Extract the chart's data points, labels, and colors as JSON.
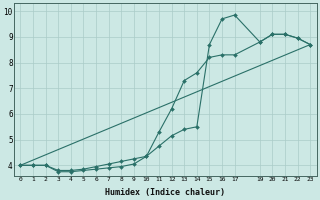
{
  "title": "",
  "xlabel": "Humidex (Indice chaleur)",
  "ylabel": "",
  "xlim": [
    -0.5,
    23.5
  ],
  "ylim": [
    3.6,
    10.3
  ],
  "xticks": [
    0,
    1,
    2,
    3,
    4,
    5,
    6,
    7,
    8,
    9,
    10,
    11,
    12,
    13,
    14,
    15,
    16,
    17,
    19,
    20,
    21,
    22,
    23
  ],
  "yticks": [
    4,
    5,
    6,
    7,
    8,
    9,
    10
  ],
  "background_color": "#cce8e4",
  "grid_color": "#aaccc8",
  "line_color": "#2a7068",
  "series": [
    {
      "x": [
        0,
        1,
        2,
        3,
        4,
        5,
        6,
        7,
        8,
        9,
        10,
        11,
        12,
        13,
        14,
        15,
        16,
        17,
        19,
        20,
        21,
        22,
        23
      ],
      "y": [
        4.0,
        4.0,
        4.0,
        3.8,
        3.8,
        3.85,
        3.95,
        4.05,
        4.15,
        4.25,
        4.35,
        4.75,
        5.15,
        5.4,
        5.5,
        8.7,
        9.7,
        9.85,
        8.8,
        9.1,
        9.1,
        8.95,
        8.7
      ],
      "has_markers": true
    },
    {
      "x": [
        0,
        1,
        2,
        3,
        4,
        5,
        6,
        7,
        8,
        9,
        10,
        11,
        12,
        13,
        14,
        15,
        16,
        17,
        19,
        20,
        21,
        22,
        23
      ],
      "y": [
        4.0,
        4.0,
        4.0,
        3.75,
        3.75,
        3.8,
        3.85,
        3.9,
        3.95,
        4.05,
        4.35,
        5.3,
        6.2,
        7.3,
        7.6,
        8.2,
        8.3,
        8.3,
        8.8,
        9.1,
        9.1,
        8.95,
        8.7
      ],
      "has_markers": true
    },
    {
      "x": [
        0,
        23
      ],
      "y": [
        4.0,
        8.7
      ],
      "has_markers": false
    }
  ]
}
